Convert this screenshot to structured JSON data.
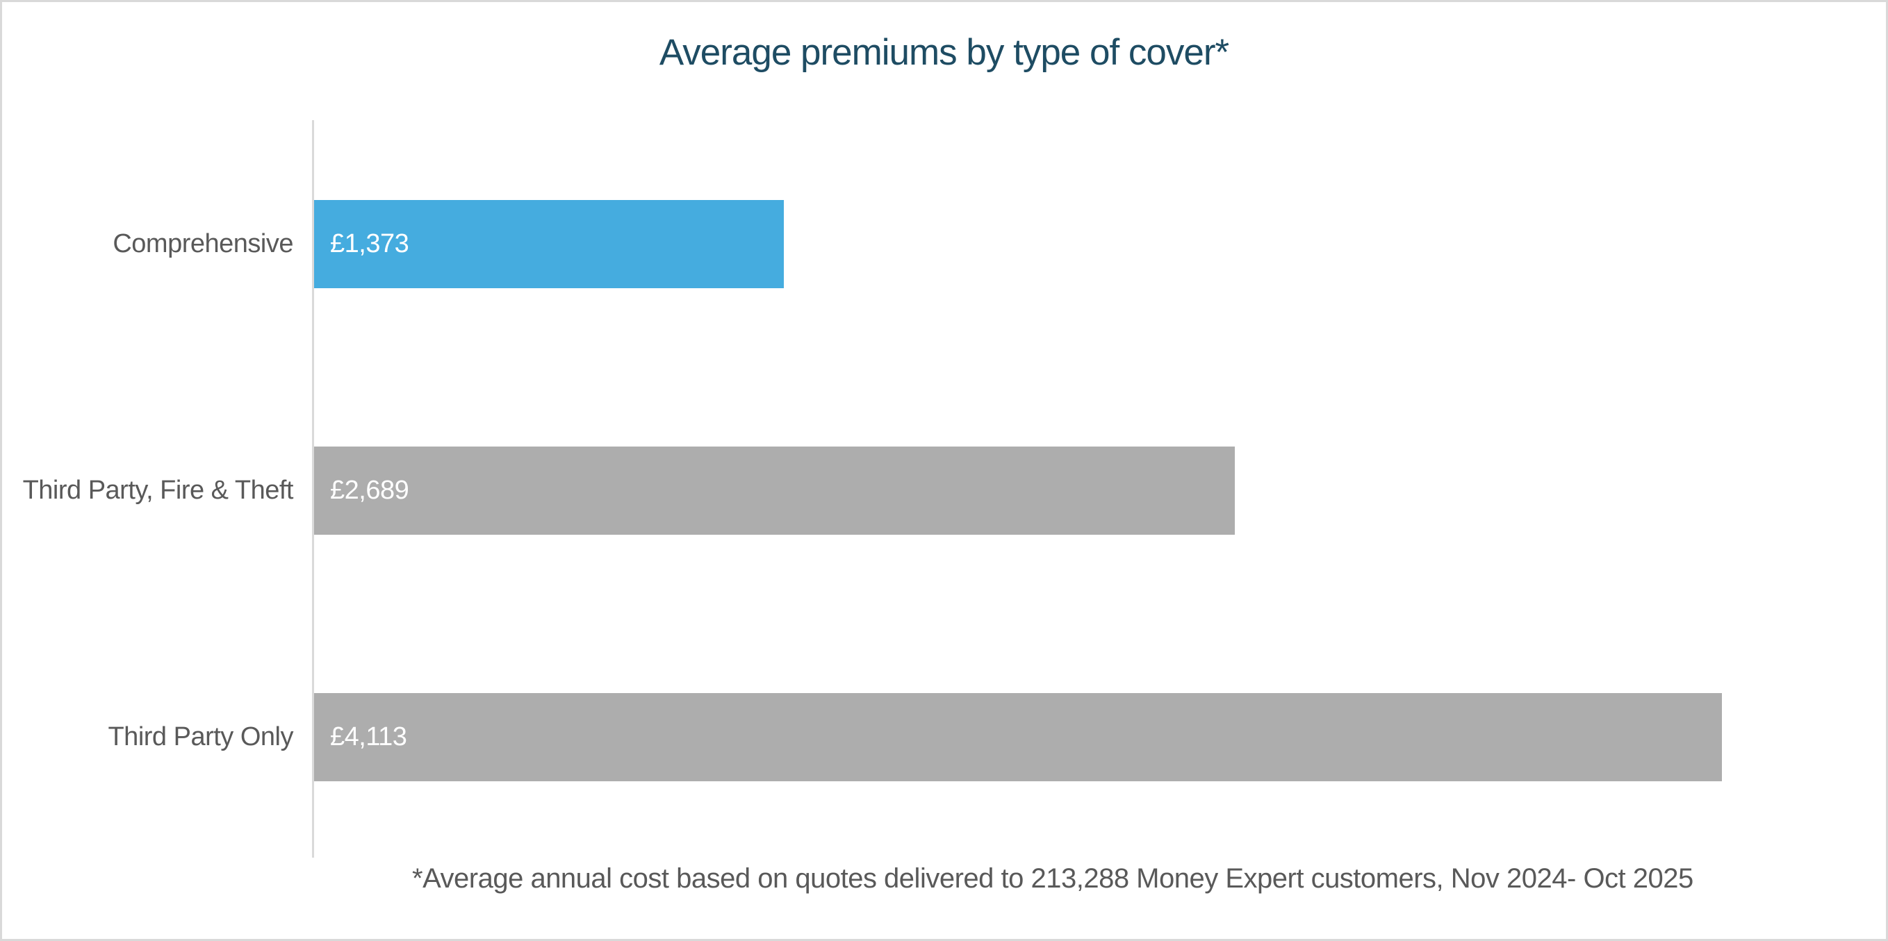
{
  "page": {
    "background": "#FFFFFF",
    "border_color": "#D9D9D9"
  },
  "chart_data": {
    "type": "bar",
    "orientation": "horizontal",
    "title": "Average premiums by type of cover*",
    "categories": [
      "Comprehensive",
      "Third Party, Fire & Theft",
      "Third Party Only"
    ],
    "values": [
      1373,
      2689,
      4113
    ],
    "value_labels": [
      "£1,373",
      "£2,689",
      "£4,113"
    ],
    "bar_colors": [
      "#45ACDF",
      "#ADADAD",
      "#ADADAD"
    ],
    "xlim": [
      0,
      4113
    ],
    "grid": false,
    "legend": false,
    "footnote": "*Average annual cost based on quotes delivered to 213,288 Money Expert customers, Nov 2024- Oct 2025",
    "colors": {
      "title": "#1E4C63",
      "category_label": "#595959",
      "value_label": "#FFFFFF",
      "footnote": "#595959",
      "axis_line": "#D9D9D9"
    }
  }
}
